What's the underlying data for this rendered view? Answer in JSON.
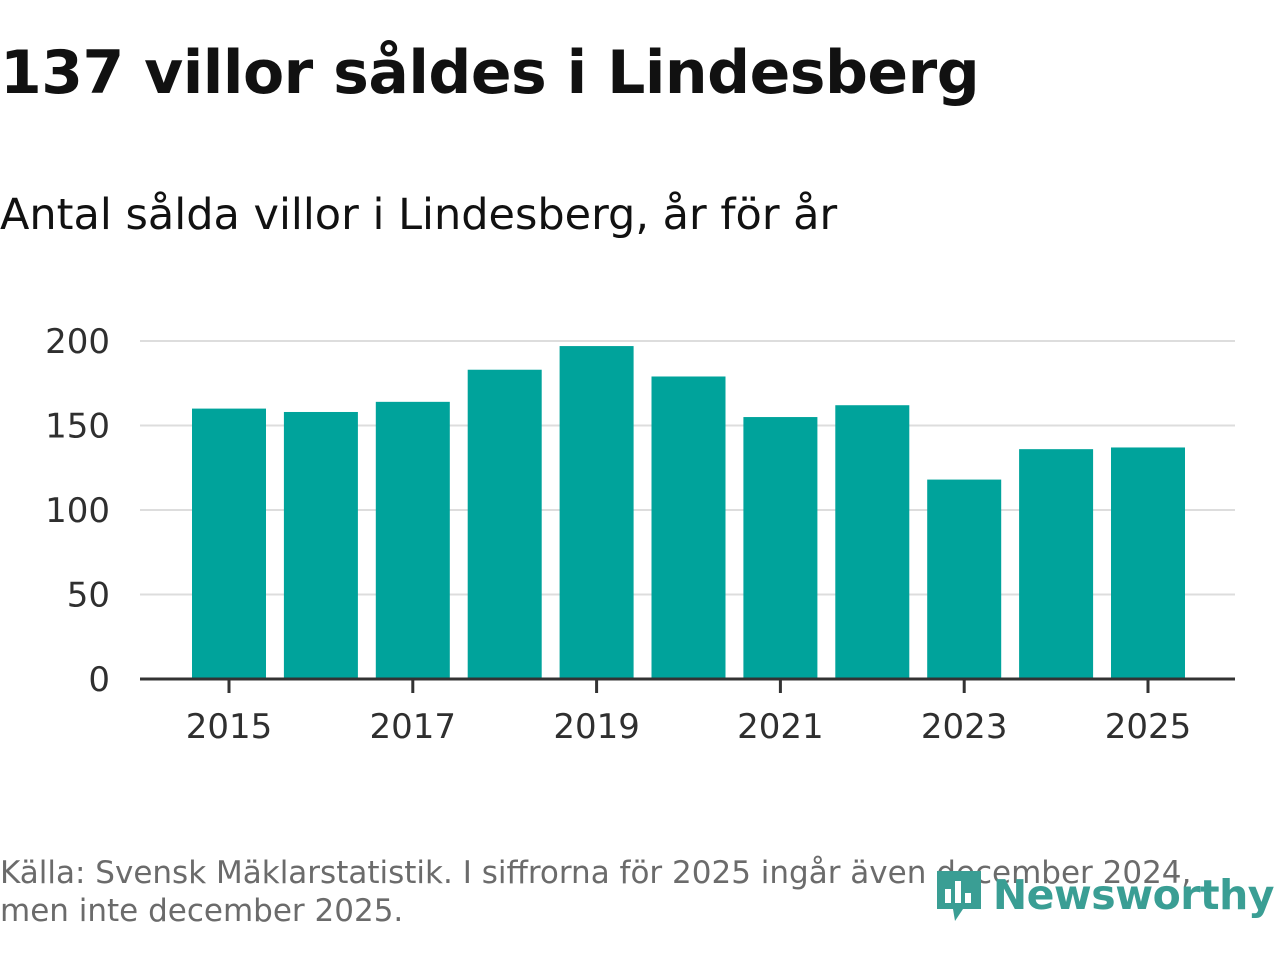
{
  "title": "137 villor såldes i Lindesberg",
  "subtitle": "Antal sålda villor i Lindesberg, år för år",
  "chart_data": {
    "type": "bar",
    "title": "137 villor såldes i Lindesberg",
    "subtitle": "Antal sålda villor i Lindesberg, år för år",
    "categories": [
      "2015",
      "2016",
      "2017",
      "2018",
      "2019",
      "2020",
      "2021",
      "2022",
      "2023",
      "2024",
      "2025"
    ],
    "values": [
      160,
      158,
      164,
      183,
      197,
      179,
      155,
      162,
      118,
      136,
      137
    ],
    "x_tick_labels": [
      "2015",
      "2017",
      "2019",
      "2021",
      "2023",
      "2025"
    ],
    "y_ticks": [
      0,
      50,
      100,
      150,
      200
    ],
    "ylim": [
      0,
      200
    ],
    "xlabel": "",
    "ylabel": "",
    "grid": true,
    "bar_color": "#00a39b",
    "grid_color": "#dddddd",
    "axis_color": "#333333"
  },
  "footer": {
    "source": "Källa: Svensk Mäklarstatistik. I siffrorna för 2025 ingår även december 2024, men inte december 2025.",
    "brand": "Newsworthy",
    "brand_color": "#3a9e94"
  }
}
